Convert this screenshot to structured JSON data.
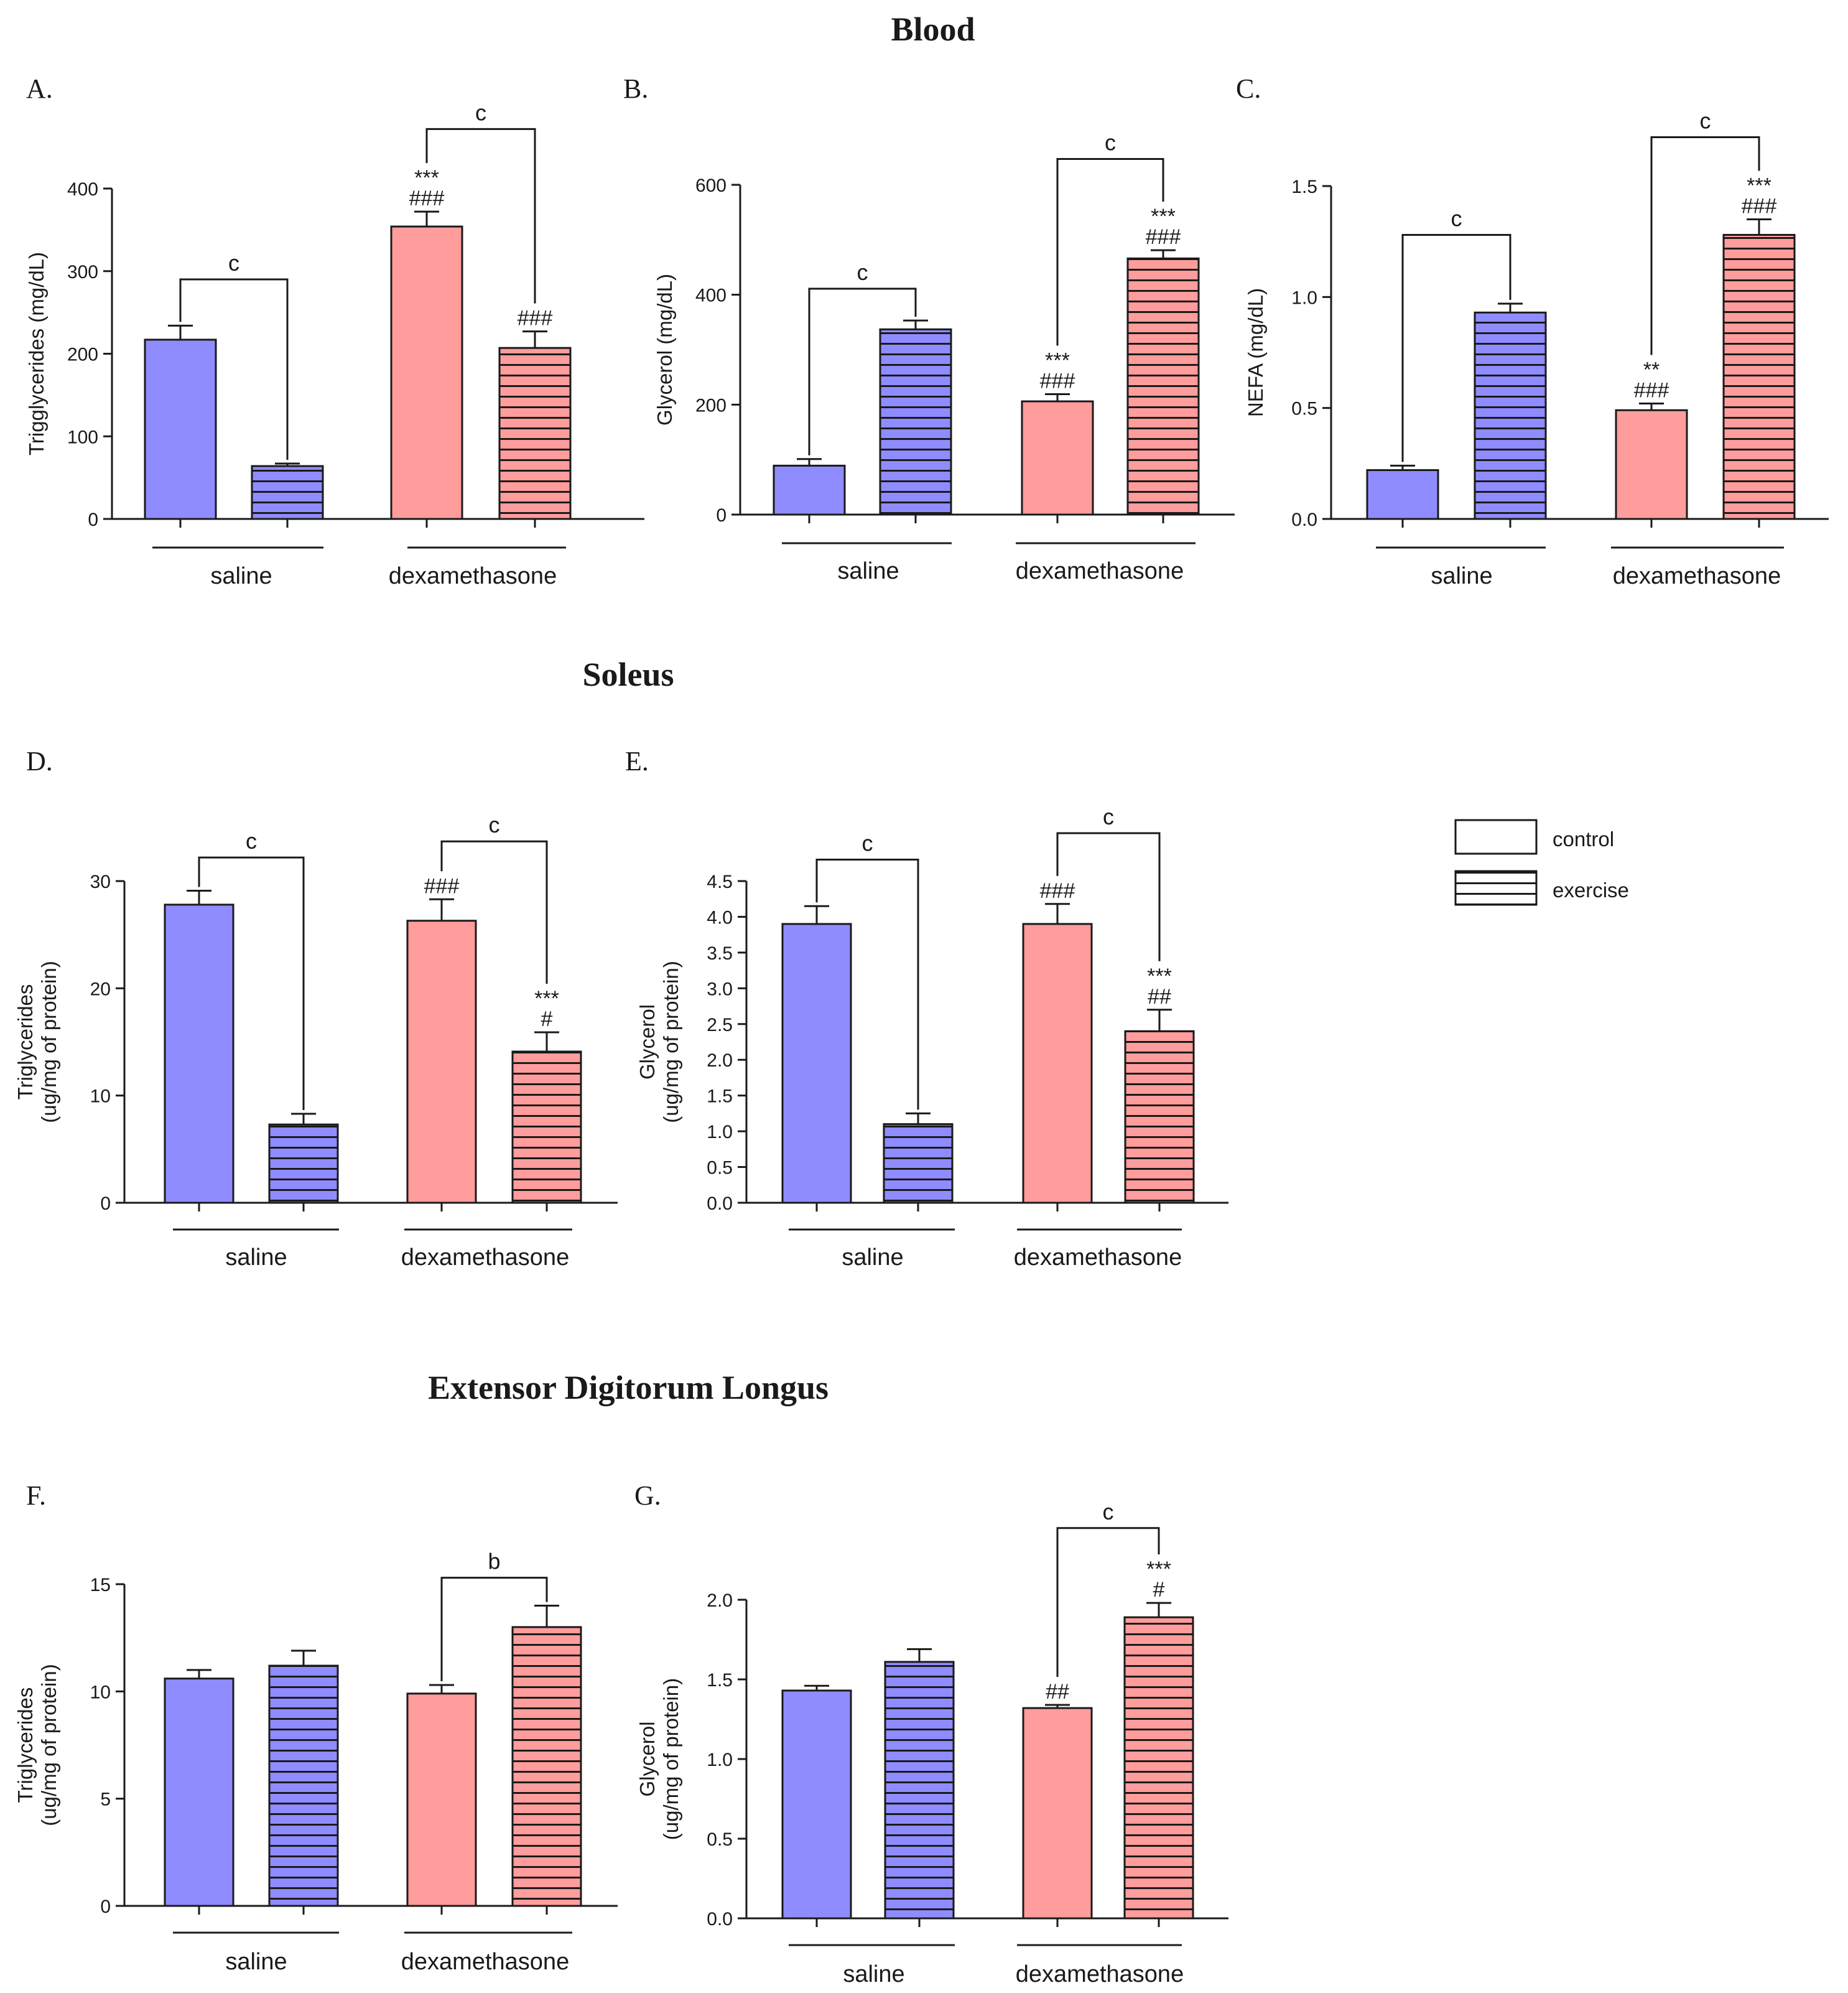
{
  "colors": {
    "saline": "#8f8cff",
    "dexamethasone": "#ff9c9c",
    "stroke": "#1a1a1a",
    "pattern": "#1a1a1a"
  },
  "sections": [
    {
      "key": "blood",
      "title": "Blood"
    },
    {
      "key": "soleus",
      "title": "Soleus"
    },
    {
      "key": "edl",
      "title": "Extensor Digitorum Longus"
    }
  ],
  "legend": {
    "items": [
      {
        "label": "control",
        "pattern": "solid"
      },
      {
        "label": "exercise",
        "pattern": "striped"
      }
    ]
  },
  "chart_data": [
    {
      "id": "A",
      "panel_label": "A.",
      "section": "blood",
      "type": "bar",
      "ylabel": [
        "Trigglycerides (mg/dL)"
      ],
      "ylim": [
        0,
        400
      ],
      "yticks": [
        0,
        100,
        200,
        300,
        400
      ],
      "ytick_labels": [
        "0",
        "100",
        "200",
        "300",
        "400"
      ],
      "groups": [
        "saline",
        "dexamethasone"
      ],
      "bars": [
        {
          "group": "saline",
          "treatment": "control",
          "value": 217,
          "sem": 17,
          "marks": []
        },
        {
          "group": "saline",
          "treatment": "exercise",
          "value": 64,
          "sem": 3,
          "marks": []
        },
        {
          "group": "dexamethasone",
          "treatment": "control",
          "value": 354,
          "sem": 18,
          "marks": [
            "***",
            "###"
          ]
        },
        {
          "group": "dexamethasone",
          "treatment": "exercise",
          "value": 207,
          "sem": 20,
          "marks": [
            "###"
          ]
        }
      ],
      "brackets": [
        {
          "from": 0,
          "to": 1,
          "label": "c",
          "y": 290
        },
        {
          "from": 2,
          "to": 3,
          "label": "c",
          "y": 472
        }
      ]
    },
    {
      "id": "B",
      "panel_label": "B.",
      "section": "blood",
      "type": "bar",
      "ylabel": [
        "Glycerol  (mg/dL)"
      ],
      "ylim": [
        0,
        600
      ],
      "yticks": [
        0,
        200,
        400,
        600
      ],
      "ytick_labels": [
        "0",
        "200",
        "400",
        "600"
      ],
      "groups": [
        "saline",
        "dexamethasone"
      ],
      "bars": [
        {
          "group": "saline",
          "treatment": "control",
          "value": 89,
          "sem": 12,
          "marks": []
        },
        {
          "group": "saline",
          "treatment": "exercise",
          "value": 337,
          "sem": 16,
          "marks": []
        },
        {
          "group": "dexamethasone",
          "treatment": "control",
          "value": 206,
          "sem": 13,
          "marks": [
            "***",
            "###"
          ]
        },
        {
          "group": "dexamethasone",
          "treatment": "exercise",
          "value": 466,
          "sem": 15,
          "marks": [
            "***",
            "###"
          ]
        }
      ],
      "brackets": [
        {
          "from": 0,
          "to": 1,
          "label": "c",
          "y": 411
        },
        {
          "from": 2,
          "to": 3,
          "label": "c",
          "y": 647
        }
      ]
    },
    {
      "id": "C",
      "panel_label": "C.",
      "section": "blood",
      "type": "bar",
      "ylabel": [
        "NEFA  (mg/dL)"
      ],
      "ylim": [
        0,
        1.5
      ],
      "yticks": [
        0,
        0.5,
        1.0,
        1.5
      ],
      "ytick_labels": [
        "0.0",
        "0.5",
        "1.0",
        "1.5"
      ],
      "groups": [
        "saline",
        "dexamethasone"
      ],
      "bars": [
        {
          "group": "saline",
          "treatment": "control",
          "value": 0.22,
          "sem": 0.02,
          "marks": []
        },
        {
          "group": "saline",
          "treatment": "exercise",
          "value": 0.93,
          "sem": 0.04,
          "marks": []
        },
        {
          "group": "dexamethasone",
          "treatment": "control",
          "value": 0.49,
          "sem": 0.03,
          "marks": [
            "**",
            "###"
          ]
        },
        {
          "group": "dexamethasone",
          "treatment": "exercise",
          "value": 1.28,
          "sem": 0.07,
          "marks": [
            "***",
            "###"
          ]
        }
      ],
      "brackets": [
        {
          "from": 0,
          "to": 1,
          "label": "c",
          "y": 1.28
        },
        {
          "from": 2,
          "to": 3,
          "label": "c",
          "y": 1.72
        }
      ]
    },
    {
      "id": "D",
      "panel_label": "D.",
      "section": "soleus",
      "type": "bar",
      "ylabel": [
        "Triglycerides",
        "(ug/mg of protein)"
      ],
      "ylim": [
        0,
        30
      ],
      "yticks": [
        0,
        10,
        20,
        30
      ],
      "ytick_labels": [
        "0",
        "10",
        "20",
        "30"
      ],
      "groups": [
        "saline",
        "dexamethasone"
      ],
      "bars": [
        {
          "group": "saline",
          "treatment": "control",
          "value": 27.8,
          "sem": 1.3,
          "marks": []
        },
        {
          "group": "saline",
          "treatment": "exercise",
          "value": 7.3,
          "sem": 1.0,
          "marks": []
        },
        {
          "group": "dexamethasone",
          "treatment": "control",
          "value": 26.3,
          "sem": 2.0,
          "marks": [
            "###"
          ]
        },
        {
          "group": "dexamethasone",
          "treatment": "exercise",
          "value": 14.1,
          "sem": 1.8,
          "marks": [
            "***",
            "#"
          ]
        }
      ],
      "brackets": [
        {
          "from": 0,
          "to": 1,
          "label": "c",
          "y": 32.2
        },
        {
          "from": 2,
          "to": 3,
          "label": "c",
          "y": 33.7
        }
      ]
    },
    {
      "id": "E",
      "panel_label": "E.",
      "section": "soleus",
      "type": "bar",
      "ylabel": [
        "Glycerol",
        "(ug/mg of protein)"
      ],
      "ylim": [
        0,
        4.5
      ],
      "yticks": [
        0,
        0.5,
        1.0,
        1.5,
        2.0,
        2.5,
        3.0,
        3.5,
        4.0,
        4.5
      ],
      "ytick_labels": [
        "0.0",
        "0.5",
        "1.0",
        "1.5",
        "2.0",
        "2.5",
        "3.0",
        "3.5",
        "4.0",
        "4.5"
      ],
      "groups": [
        "saline",
        "dexamethasone"
      ],
      "bars": [
        {
          "group": "saline",
          "treatment": "control",
          "value": 3.9,
          "sem": 0.25,
          "marks": []
        },
        {
          "group": "saline",
          "treatment": "exercise",
          "value": 1.1,
          "sem": 0.15,
          "marks": []
        },
        {
          "group": "dexamethasone",
          "treatment": "control",
          "value": 3.9,
          "sem": 0.28,
          "marks": [
            "###"
          ]
        },
        {
          "group": "dexamethasone",
          "treatment": "exercise",
          "value": 2.4,
          "sem": 0.3,
          "marks": [
            "***",
            "##"
          ]
        }
      ],
      "brackets": [
        {
          "from": 0,
          "to": 1,
          "label": "c",
          "y": 4.8
        },
        {
          "from": 2,
          "to": 3,
          "label": "c",
          "y": 5.17
        }
      ]
    },
    {
      "id": "F",
      "panel_label": "F.",
      "section": "edl",
      "type": "bar",
      "ylabel": [
        "Triglycerides",
        "(ug/mg of protein)"
      ],
      "ylim": [
        0,
        15
      ],
      "yticks": [
        0,
        5,
        10,
        15
      ],
      "ytick_labels": [
        "0",
        "5",
        "10",
        "15"
      ],
      "groups": [
        "saline",
        "dexamethasone"
      ],
      "bars": [
        {
          "group": "saline",
          "treatment": "control",
          "value": 10.6,
          "sem": 0.4,
          "marks": []
        },
        {
          "group": "saline",
          "treatment": "exercise",
          "value": 11.2,
          "sem": 0.7,
          "marks": []
        },
        {
          "group": "dexamethasone",
          "treatment": "control",
          "value": 9.9,
          "sem": 0.4,
          "marks": []
        },
        {
          "group": "dexamethasone",
          "treatment": "exercise",
          "value": 13.0,
          "sem": 1.0,
          "marks": []
        }
      ],
      "brackets": [
        {
          "from": 2,
          "to": 3,
          "label": "b",
          "y": 15.3
        }
      ]
    },
    {
      "id": "G",
      "panel_label": "G.",
      "section": "edl",
      "type": "bar",
      "ylabel": [
        "Glycerol",
        "(ug/mg of protein)"
      ],
      "ylim": [
        0,
        2.0
      ],
      "yticks": [
        0,
        0.5,
        1.0,
        1.5,
        2.0
      ],
      "ytick_labels": [
        "0.0",
        "0.5",
        "1.0",
        "1.5",
        "2.0"
      ],
      "groups": [
        "saline",
        "dexamethasone"
      ],
      "bars": [
        {
          "group": "saline",
          "treatment": "control",
          "value": 1.43,
          "sem": 0.03,
          "marks": []
        },
        {
          "group": "saline",
          "treatment": "exercise",
          "value": 1.61,
          "sem": 0.08,
          "marks": []
        },
        {
          "group": "dexamethasone",
          "treatment": "control",
          "value": 1.32,
          "sem": 0.02,
          "marks": [
            "##"
          ]
        },
        {
          "group": "dexamethasone",
          "treatment": "exercise",
          "value": 1.89,
          "sem": 0.09,
          "marks": [
            "***",
            "#"
          ]
        }
      ],
      "brackets": [
        {
          "from": 2,
          "to": 3,
          "label": "c",
          "y": 2.45
        }
      ]
    }
  ]
}
